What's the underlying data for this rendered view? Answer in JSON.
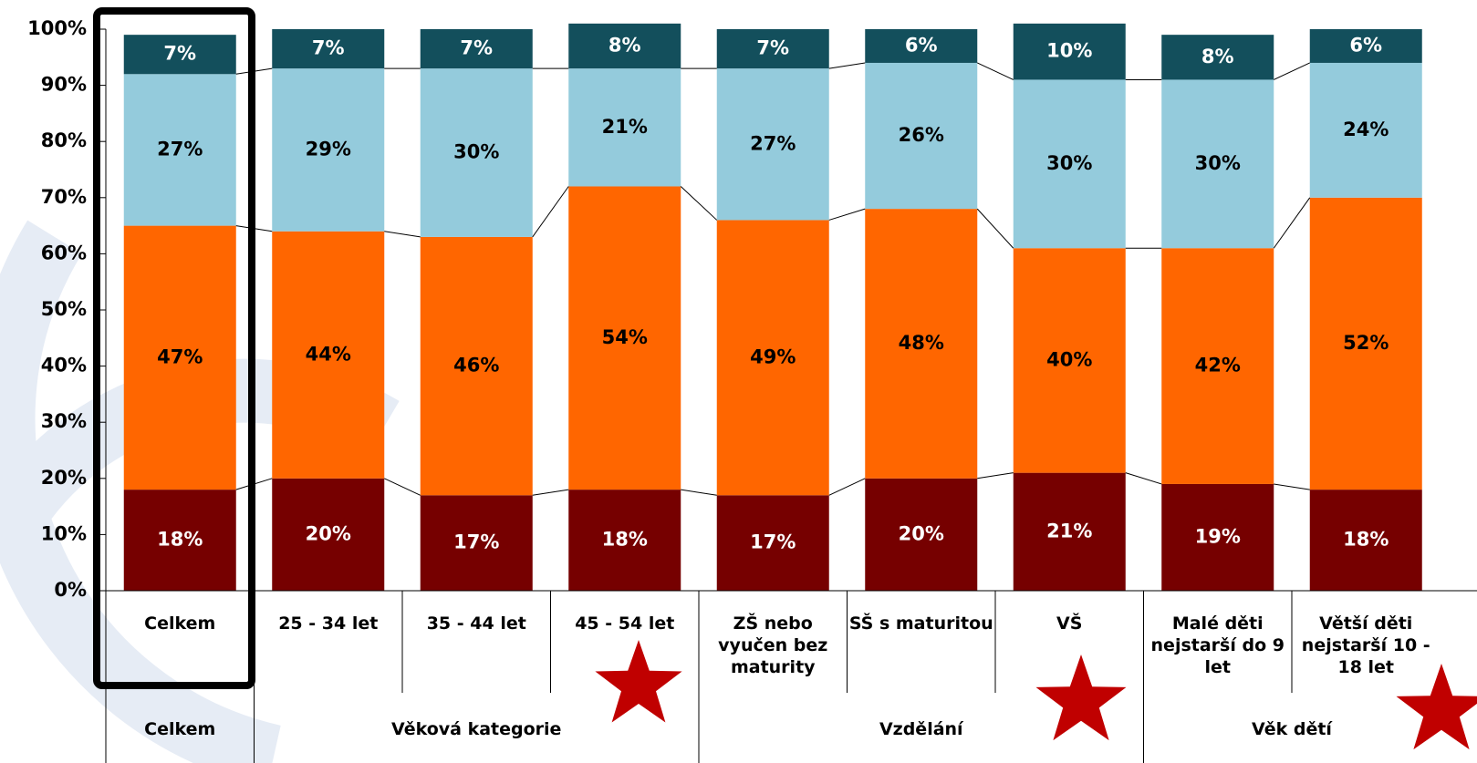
{
  "chart_data": {
    "type": "stacked_bar",
    "categories": [
      "Celkem",
      "25 - 34 let",
      "35 - 44 let",
      "45 - 54 let",
      "ZŠ nebo vyučen bez maturity",
      "SŠ s maturitou",
      "VŠ",
      "Malé děti nejstarší do 9 let",
      "Větší děti nejstarší 10 - 18 let"
    ],
    "groups": [
      {
        "label": "Celkem",
        "span": 1
      },
      {
        "label": "Věková kategorie",
        "span": 3
      },
      {
        "label": "Vzdělání",
        "span": 3
      },
      {
        "label": "Věk dětí",
        "span": 2
      }
    ],
    "series": [
      {
        "color": "#760000",
        "label_color": "#ffffff",
        "values": [
          18,
          20,
          17,
          18,
          17,
          20,
          21,
          19,
          18
        ],
        "value_labels": [
          "18%",
          "20%",
          "17%",
          "18%",
          "17%",
          "20%",
          "21%",
          "19%",
          "18%"
        ]
      },
      {
        "color": "#ff6600",
        "label_color": "#000000",
        "values": [
          47,
          44,
          46,
          54,
          49,
          48,
          40,
          42,
          52
        ],
        "value_labels": [
          "47%",
          "44%",
          "46%",
          "54%",
          "49%",
          "48%",
          "40%",
          "42%",
          "52%"
        ]
      },
      {
        "color": "#94cbdc",
        "label_color": "#000000",
        "values": [
          27,
          29,
          30,
          21,
          27,
          26,
          30,
          30,
          24
        ],
        "value_labels": [
          "27%",
          "29%",
          "30%",
          "21%",
          "27%",
          "26%",
          "30%",
          "30%",
          "24%"
        ]
      },
      {
        "color": "#134f5c",
        "label_color": "#ffffff",
        "values": [
          7,
          7,
          7,
          8,
          7,
          6,
          10,
          8,
          6
        ],
        "value_labels": [
          "7%",
          "7%",
          "7%",
          "8%",
          "7%",
          "6%",
          "10%",
          "8%",
          "6%"
        ]
      }
    ],
    "ylim": [
      0,
      100
    ],
    "yticks": [
      {
        "value": 0,
        "label": "0%"
      },
      {
        "value": 10,
        "label": "10%"
      },
      {
        "value": 20,
        "label": "20%"
      },
      {
        "value": 30,
        "label": "30%"
      },
      {
        "value": 40,
        "label": "40%"
      },
      {
        "value": 50,
        "label": "50%"
      },
      {
        "value": 60,
        "label": "60%"
      },
      {
        "value": 70,
        "label": "70%"
      },
      {
        "value": 80,
        "label": "80%"
      },
      {
        "value": 90,
        "label": "90%"
      },
      {
        "value": 100,
        "label": "100%"
      }
    ]
  }
}
